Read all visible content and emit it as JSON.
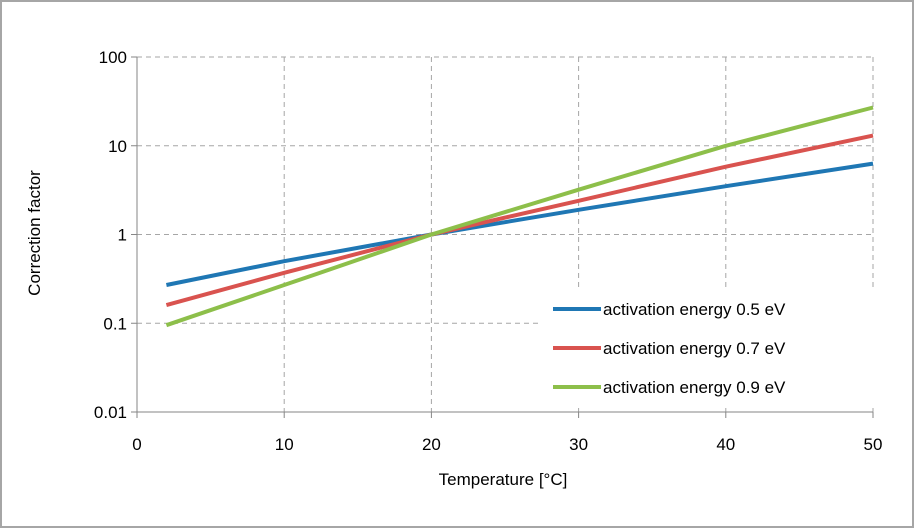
{
  "chart_data": {
    "type": "line",
    "title": "",
    "xlabel": "Temperature [°C]",
    "ylabel": "Correction factor",
    "xlim": [
      0,
      50
    ],
    "ylim": [
      0.01,
      100
    ],
    "y_scale": "log",
    "grid": true,
    "legend_position": "bottom-right",
    "x_ticks": [
      "0",
      "10",
      "20",
      "30",
      "40",
      "50"
    ],
    "y_ticks": [
      "0.01",
      "0.1",
      "1",
      "10",
      "100"
    ],
    "x_tick_values": [
      0,
      10,
      20,
      30,
      40,
      50
    ],
    "y_tick_values": [
      0.01,
      0.1,
      1,
      10,
      100
    ],
    "series": [
      {
        "name": "activation energy 0.5 eV",
        "color": "#1f77b4",
        "x": [
          2,
          10,
          20,
          30,
          40,
          50
        ],
        "y": [
          0.27,
          0.5,
          1.0,
          1.9,
          3.5,
          6.3
        ]
      },
      {
        "name": "activation energy 0.7 eV",
        "color": "#d9534f",
        "x": [
          2,
          10,
          20,
          30,
          40,
          50
        ],
        "y": [
          0.16,
          0.37,
          1.0,
          2.4,
          5.8,
          13
        ]
      },
      {
        "name": "activation energy 0.9 eV",
        "color": "#8dbf4a",
        "x": [
          2,
          10,
          12,
          20,
          30,
          40,
          50
        ],
        "y": [
          0.095,
          0.27,
          0.35,
          1.0,
          3.2,
          10,
          27
        ]
      }
    ]
  }
}
